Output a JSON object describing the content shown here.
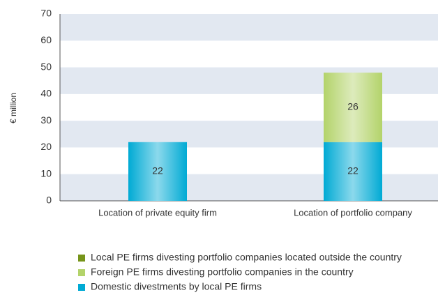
{
  "chart_data": {
    "type": "stacked_bar",
    "y_label": "€ million",
    "categories": [
      "Location of private equity firm",
      "Location of portfolio company"
    ],
    "series": [
      {
        "name": "Domestic divestments by local PE firms",
        "color": "#00aad4",
        "values": [
          22,
          22
        ]
      },
      {
        "name": "Foreign PE firms divesting portfolio companies in the country",
        "color": "#b3d36a",
        "values": [
          null,
          26
        ]
      },
      {
        "name": "Local PE firms divesting portfolio companies located outside the country",
        "color": "#76941a",
        "values": [
          null,
          null
        ]
      }
    ],
    "ylim": [
      0,
      70
    ],
    "yticks": [
      0,
      10,
      20,
      30,
      40,
      50,
      60,
      70
    ],
    "grid": "banded",
    "grid_color": "#e2e8f1"
  }
}
